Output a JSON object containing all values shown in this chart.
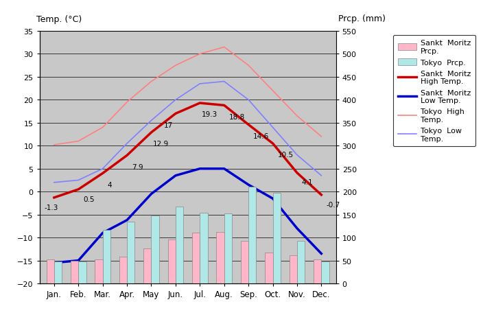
{
  "months": [
    "Jan.",
    "Feb.",
    "Mar.",
    "Apr.",
    "May",
    "Jun.",
    "Jul.",
    "Aug.",
    "Sep.",
    "Oct.",
    "Nov.",
    "Dec."
  ],
  "x": [
    0,
    1,
    2,
    3,
    4,
    5,
    6,
    7,
    8,
    9,
    10,
    11
  ],
  "sankt_moritz_high": [
    -1.3,
    0.5,
    4.0,
    7.9,
    12.9,
    17.0,
    19.3,
    18.8,
    14.6,
    10.5,
    4.1,
    -0.7
  ],
  "sankt_moritz_low": [
    -15.5,
    -15.0,
    -9.0,
    -6.2,
    -0.5,
    3.5,
    5.0,
    5.0,
    1.5,
    -1.5,
    -8.0,
    -13.5
  ],
  "tokyo_high": [
    10.2,
    11.0,
    14.0,
    19.5,
    24.0,
    27.5,
    30.0,
    31.5,
    27.5,
    22.0,
    16.5,
    12.0
  ],
  "tokyo_low": [
    2.0,
    2.5,
    5.0,
    10.5,
    15.5,
    20.0,
    23.5,
    24.0,
    20.0,
    14.0,
    8.0,
    3.5
  ],
  "sankt_moritz_prcp": [
    52,
    50,
    52,
    58,
    76,
    96,
    110,
    112,
    93,
    68,
    62,
    52
  ],
  "tokyo_prcp": [
    48,
    48,
    117,
    135,
    148,
    168,
    154,
    152,
    210,
    197,
    92,
    48
  ],
  "temp_ylim": [
    -20,
    35
  ],
  "prcp_ylim": [
    0,
    550
  ],
  "bar_width": 0.32,
  "color_sm_high": "#CC0000",
  "color_sm_low": "#0000CC",
  "color_tokyo_high": "#FF8080",
  "color_tokyo_low": "#8080FF",
  "color_sm_prcp": "#FFB6C8",
  "color_tokyo_prcp": "#B0E8E8",
  "bg_color": "#C8C8C8",
  "ann_labels": [
    "-1.3",
    "0.5",
    "4",
    "7.9",
    "12.9",
    "17",
    "19.3",
    "18.8",
    "14.6",
    "10.5",
    "4.1",
    "-0.7"
  ],
  "ann_x_offsets": [
    -10,
    5,
    5,
    5,
    2,
    -12,
    2,
    5,
    5,
    5,
    5,
    5
  ],
  "ann_y_offsets": [
    -12,
    -12,
    -14,
    -14,
    -14,
    -14,
    -14,
    -14,
    -14,
    -14,
    -12,
    -12
  ]
}
